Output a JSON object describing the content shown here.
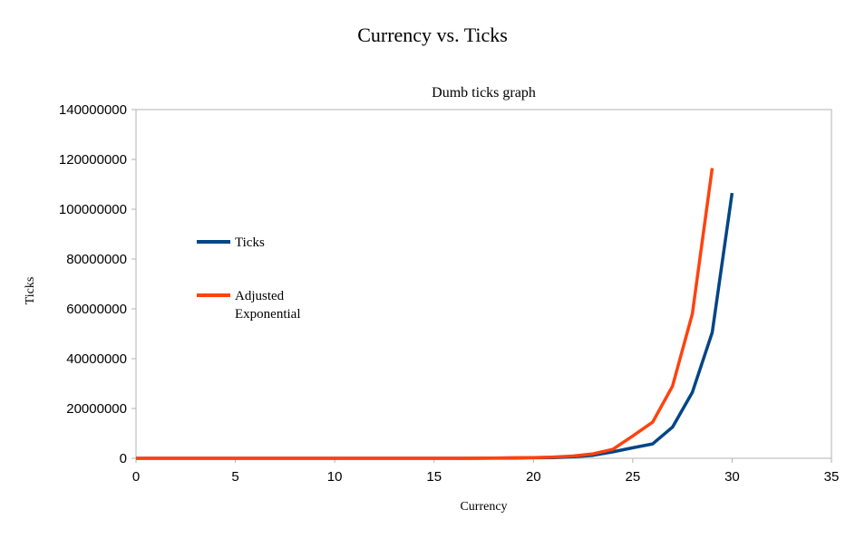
{
  "chart_data": {
    "type": "line",
    "title": "Currency vs. Ticks",
    "subtitle": "Dumb ticks graph",
    "xlabel": "Currency",
    "ylabel": "Ticks",
    "xlim": [
      0,
      35
    ],
    "ylim": [
      0,
      140000000
    ],
    "x_ticks": [
      0,
      5,
      10,
      15,
      20,
      25,
      30,
      35
    ],
    "y_ticks": [
      0,
      20000000,
      40000000,
      60000000,
      80000000,
      100000000,
      120000000,
      140000000
    ],
    "x_tick_labels": [
      "0",
      "5",
      "10",
      "15",
      "20",
      "25",
      "30",
      "35"
    ],
    "y_tick_labels": [
      "0",
      "20000000",
      "40000000",
      "60000000",
      "80000000",
      "100000000",
      "120000000",
      "140000000"
    ],
    "grid": false,
    "legend_position": "left",
    "series": [
      {
        "name": "Ticks",
        "color": "#004586",
        "x": [
          0,
          1,
          2,
          3,
          4,
          5,
          6,
          7,
          8,
          9,
          10,
          11,
          12,
          13,
          14,
          15,
          16,
          17,
          18,
          19,
          20,
          21,
          22,
          23,
          24,
          25,
          26,
          27,
          28,
          29,
          30
        ],
        "values": [
          0,
          0,
          0,
          0,
          0,
          0,
          0,
          0,
          0,
          0,
          0,
          0,
          0,
          0,
          0,
          0,
          0,
          0,
          50000,
          100000,
          200000,
          300000,
          600000,
          1200000,
          2600000,
          4200000,
          5800000,
          12500000,
          26500000,
          50500000,
          106500000
        ]
      },
      {
        "name": "Adjusted Exponential",
        "color": "#ff420e",
        "x": [
          0,
          1,
          2,
          3,
          4,
          5,
          6,
          7,
          8,
          9,
          10,
          11,
          12,
          13,
          14,
          15,
          16,
          17,
          18,
          19,
          20,
          21,
          22,
          23,
          24,
          25,
          26,
          27,
          28,
          29
        ],
        "values": [
          0,
          0,
          0,
          0,
          0,
          0,
          0,
          0,
          0,
          0,
          0,
          0,
          0,
          0,
          0,
          0,
          0,
          50000,
          100000,
          200000,
          300000,
          500000,
          900000,
          1800000,
          3600000,
          9000000,
          14500000,
          29000000,
          58000000,
          116500000
        ]
      }
    ]
  }
}
